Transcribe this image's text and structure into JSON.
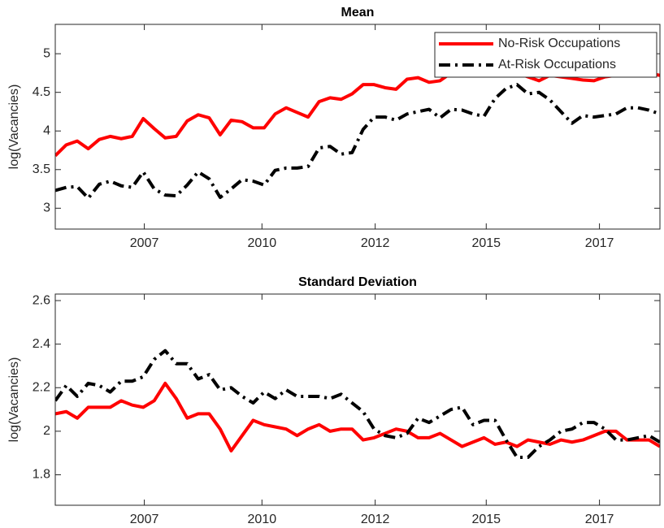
{
  "chart_data": [
    {
      "type": "line",
      "title": "Mean",
      "y_label": "log(Vacancies)",
      "x": [
        0,
        1,
        2,
        3,
        4,
        5,
        6,
        7,
        8,
        9,
        10,
        11,
        12,
        13,
        14,
        15,
        16,
        17,
        18,
        19,
        20,
        21,
        22,
        23,
        24,
        25,
        26,
        27,
        28,
        29,
        30,
        31,
        32,
        33,
        34,
        35,
        36,
        37,
        38,
        39,
        40,
        41,
        42,
        43,
        44,
        45,
        46,
        47,
        48,
        49,
        50,
        51,
        52,
        53,
        54,
        55
      ],
      "xlim": [
        0,
        55
      ],
      "xticks": [
        {
          "value": 8.1,
          "label": "2007"
        },
        {
          "value": 18.8,
          "label": "2010"
        },
        {
          "value": 29.1,
          "label": "2012"
        },
        {
          "value": 39.2,
          "label": "2015"
        },
        {
          "value": 49.5,
          "label": "2017"
        }
      ],
      "ylim": [
        2.73,
        5.38
      ],
      "yticks": [
        3,
        3.5,
        4,
        4.5,
        5
      ],
      "grid": false,
      "legend": "northeast",
      "series": [
        {
          "name": "No-Risk Occupations",
          "color": "#ff0000",
          "dash": "solid",
          "values": [
            3.68,
            3.82,
            3.87,
            3.77,
            3.89,
            3.93,
            3.9,
            3.93,
            4.16,
            4.03,
            3.91,
            3.93,
            4.13,
            4.21,
            4.17,
            3.95,
            4.14,
            4.12,
            4.04,
            4.04,
            4.22,
            4.3,
            4.24,
            4.18,
            4.38,
            4.43,
            4.41,
            4.48,
            4.6,
            4.6,
            4.56,
            4.54,
            4.67,
            4.69,
            4.63,
            4.65,
            4.75,
            4.78,
            4.8,
            4.82,
            4.8,
            4.78,
            4.75,
            4.7,
            4.65,
            4.72,
            4.7,
            4.68,
            4.66,
            4.65,
            4.7,
            4.72,
            4.74,
            4.73,
            4.75,
            4.72
          ]
        },
        {
          "name": "At-Risk Occupations",
          "color": "#000000",
          "dash": "dashdot",
          "values": [
            3.23,
            3.27,
            3.28,
            3.13,
            3.31,
            3.35,
            3.29,
            3.27,
            3.47,
            3.25,
            3.17,
            3.16,
            3.3,
            3.47,
            3.38,
            3.14,
            3.25,
            3.37,
            3.35,
            3.3,
            3.49,
            3.52,
            3.52,
            3.54,
            3.78,
            3.8,
            3.7,
            3.72,
            4.02,
            4.18,
            4.18,
            4.14,
            4.22,
            4.25,
            4.28,
            4.17,
            4.28,
            4.27,
            4.22,
            4.19,
            4.42,
            4.55,
            4.6,
            4.48,
            4.5,
            4.4,
            4.25,
            4.1,
            4.2,
            4.18,
            4.2,
            4.22,
            4.3,
            4.3,
            4.27,
            4.22
          ]
        }
      ]
    },
    {
      "type": "line",
      "title": "Standard Deviation",
      "y_label": "log(Vacancies)",
      "x": [
        0,
        1,
        2,
        3,
        4,
        5,
        6,
        7,
        8,
        9,
        10,
        11,
        12,
        13,
        14,
        15,
        16,
        17,
        18,
        19,
        20,
        21,
        22,
        23,
        24,
        25,
        26,
        27,
        28,
        29,
        30,
        31,
        32,
        33,
        34,
        35,
        36,
        37,
        38,
        39,
        40,
        41,
        42,
        43,
        44,
        45,
        46,
        47,
        48,
        49,
        50,
        51,
        52,
        53,
        54,
        55
      ],
      "xlim": [
        0,
        55
      ],
      "xticks": [
        {
          "value": 8.1,
          "label": "2007"
        },
        {
          "value": 18.8,
          "label": "2010"
        },
        {
          "value": 29.1,
          "label": "2012"
        },
        {
          "value": 39.2,
          "label": "2015"
        },
        {
          "value": 49.5,
          "label": "2017"
        }
      ],
      "ylim": [
        1.66,
        2.63
      ],
      "yticks": [
        1.8,
        2,
        2.2,
        2.4,
        2.6
      ],
      "grid": false,
      "series": [
        {
          "name": "No-Risk Occupations",
          "color": "#ff0000",
          "dash": "solid",
          "values": [
            2.08,
            2.09,
            2.06,
            2.11,
            2.11,
            2.11,
            2.14,
            2.12,
            2.11,
            2.14,
            2.22,
            2.15,
            2.06,
            2.08,
            2.08,
            2.01,
            1.91,
            1.98,
            2.05,
            2.03,
            2.02,
            2.01,
            1.98,
            2.01,
            2.03,
            2.0,
            2.01,
            2.01,
            1.96,
            1.97,
            1.99,
            2.01,
            2.0,
            1.97,
            1.97,
            1.99,
            1.96,
            1.93,
            1.95,
            1.97,
            1.94,
            1.95,
            1.93,
            1.96,
            1.95,
            1.94,
            1.96,
            1.95,
            1.96,
            1.98,
            2.0,
            2.0,
            1.96,
            1.96,
            1.96,
            1.93
          ]
        },
        {
          "name": "At-Risk Occupations",
          "color": "#000000",
          "dash": "dashdot",
          "values": [
            2.14,
            2.21,
            2.16,
            2.22,
            2.21,
            2.18,
            2.23,
            2.23,
            2.25,
            2.33,
            2.37,
            2.31,
            2.31,
            2.24,
            2.26,
            2.19,
            2.2,
            2.16,
            2.13,
            2.18,
            2.15,
            2.19,
            2.16,
            2.16,
            2.16,
            2.15,
            2.17,
            2.13,
            2.09,
            2.01,
            1.98,
            1.97,
            1.99,
            2.06,
            2.04,
            2.07,
            2.1,
            2.11,
            2.03,
            2.05,
            2.05,
            1.96,
            1.88,
            1.88,
            1.93,
            1.96,
            2.0,
            2.01,
            2.04,
            2.04,
            2.01,
            1.96,
            1.96,
            1.97,
            1.98,
            1.95
          ]
        }
      ]
    }
  ]
}
